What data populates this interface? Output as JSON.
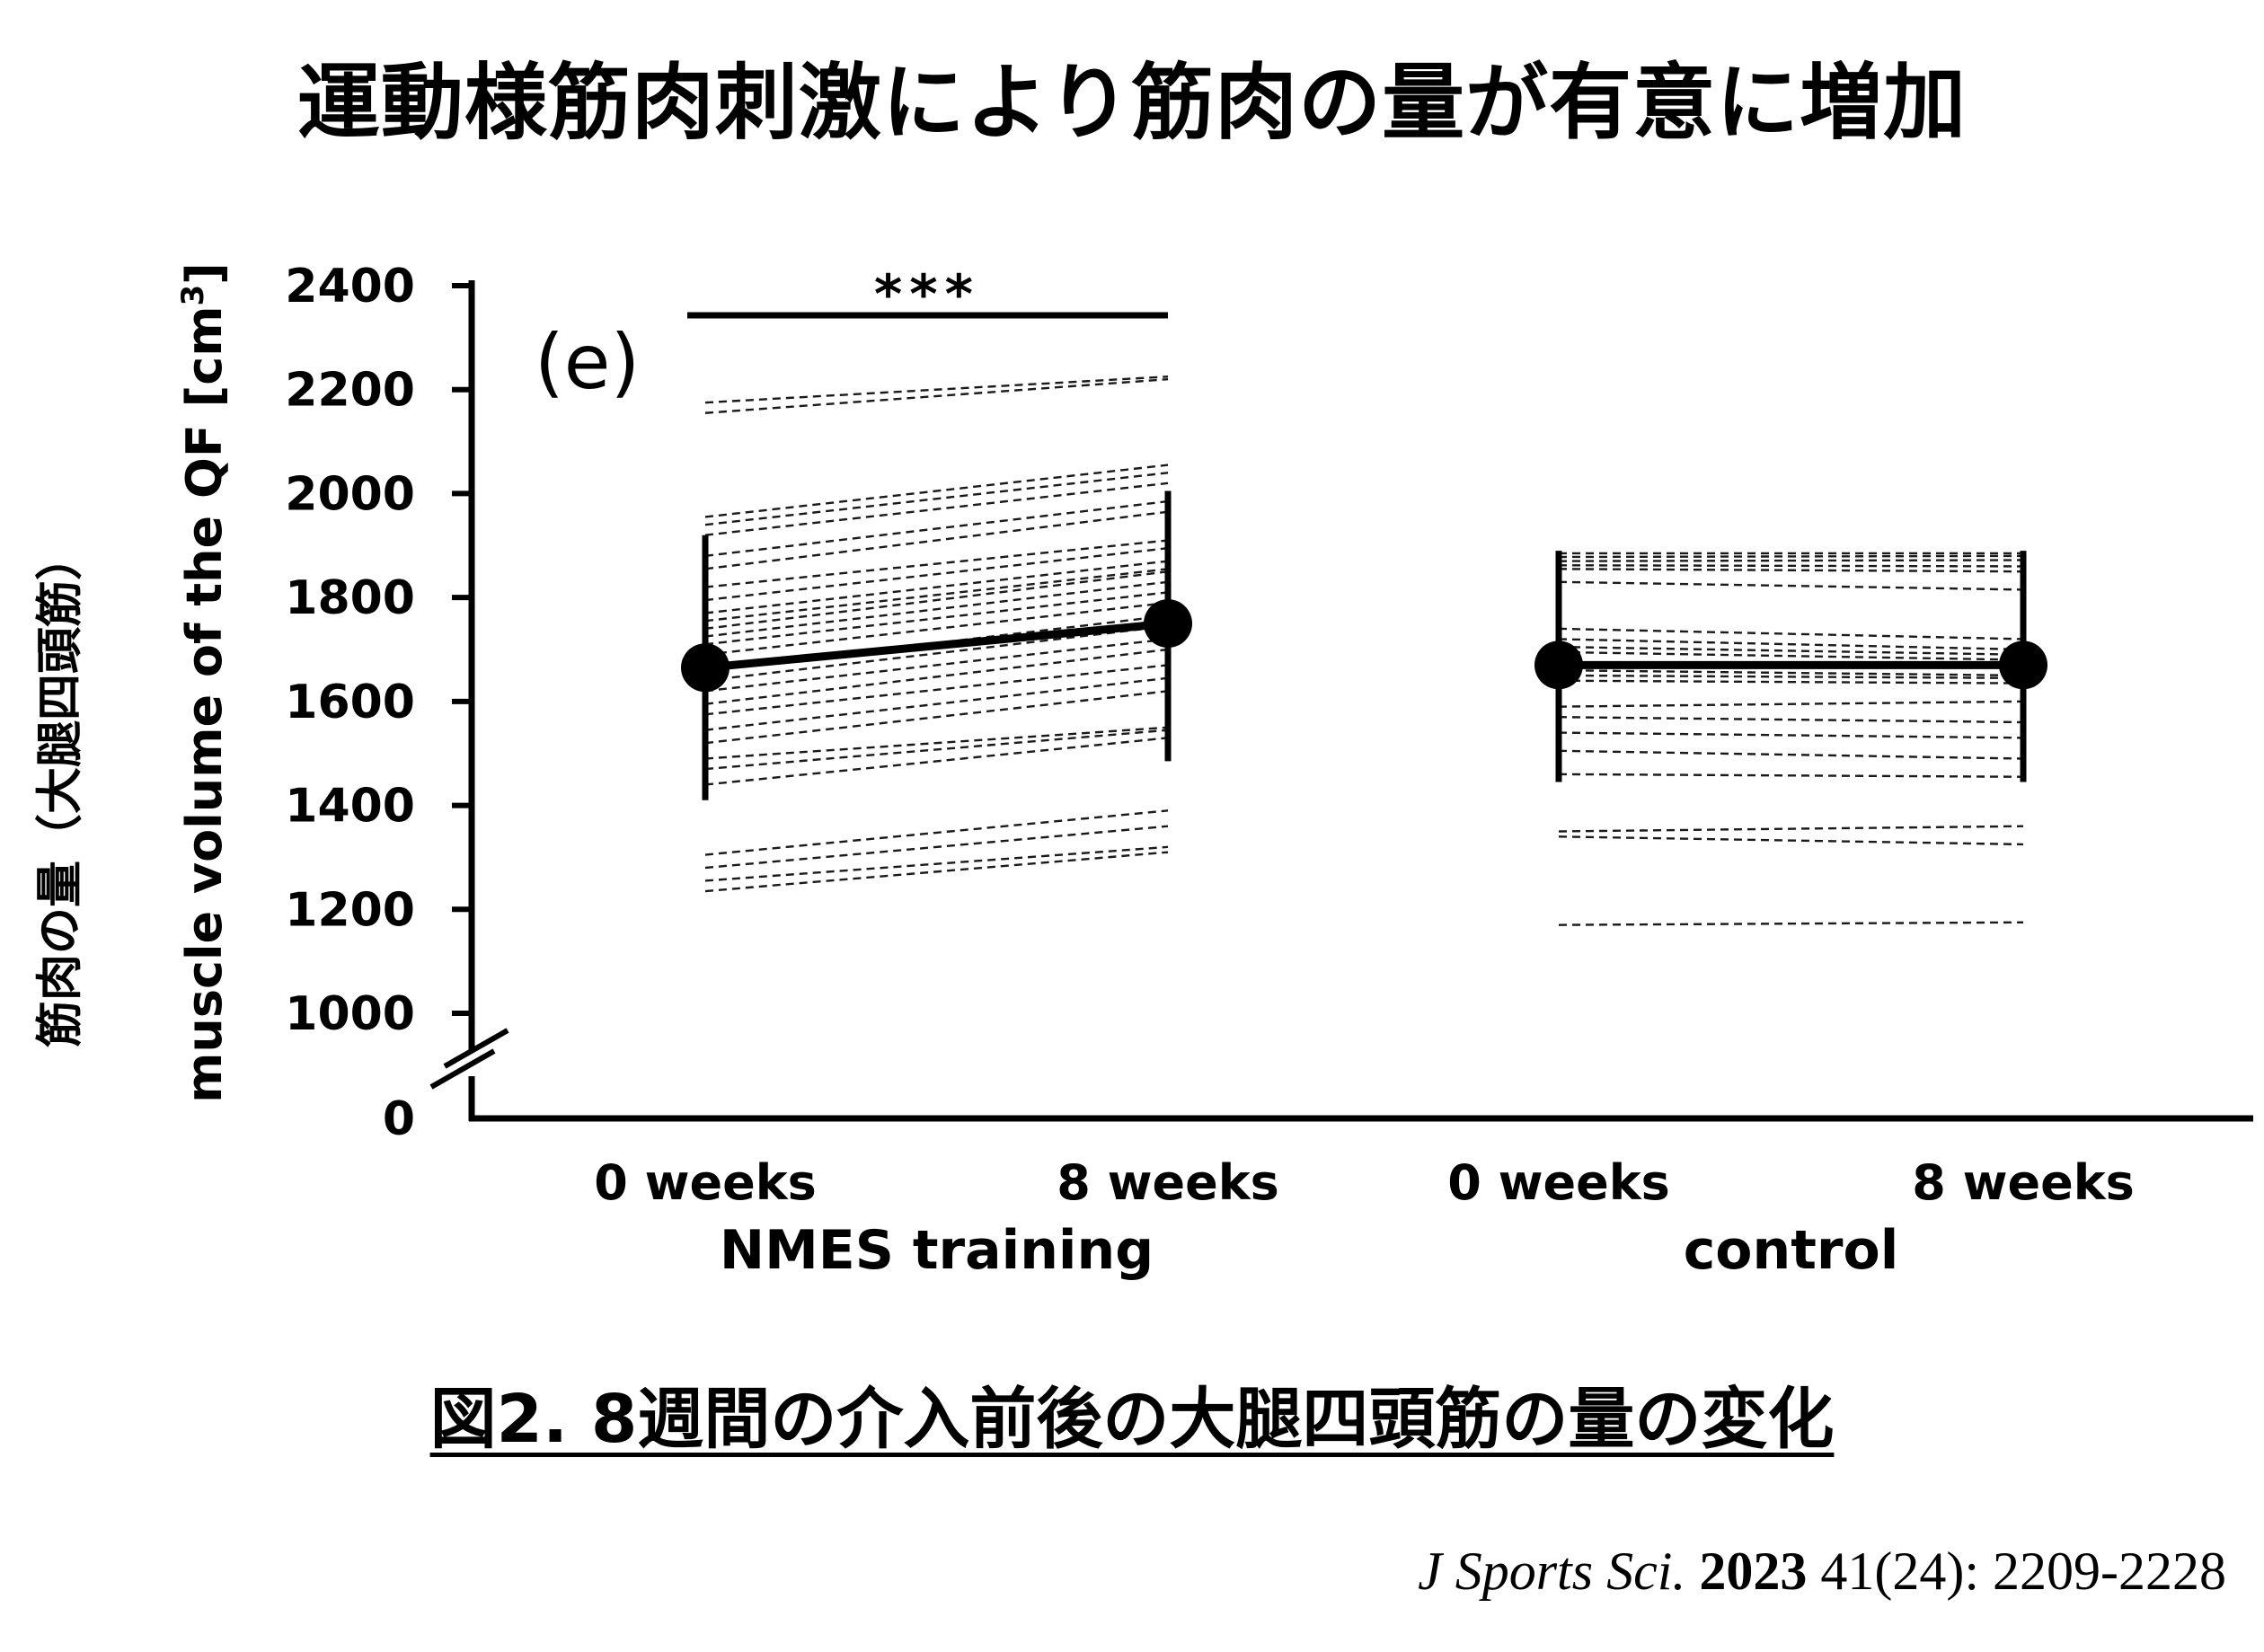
{
  "title": "運動様筋肉刺激により筋肉の量が有意に増加",
  "jp_ylabel": "筋肉の量（大腿四頭筋）",
  "caption": "図2. 8週間の介入前後の大腿四頭筋の量の変化",
  "citation": {
    "journal": "J Sports Sci.",
    "year": "2023",
    "rest": "41(24): 2209-2228"
  },
  "colors": {
    "ink": "#000000",
    "dashed": "#1a1a1a",
    "background": "#ffffff"
  },
  "chart_data": {
    "type": "line",
    "panel_label": "(e)",
    "ylabel": "muscle volume of the QF [cm",
    "ylabel_superscript": "3",
    "ylabel_close": "]",
    "yticks": [
      0,
      1000,
      1200,
      1400,
      1600,
      1800,
      2000,
      2200,
      2400
    ],
    "ylim": [
      1000,
      2400
    ],
    "axis_break": true,
    "significance": "***",
    "groups": [
      {
        "name": "NMES training",
        "categories": [
          "0 weeks",
          "8 weeks"
        ],
        "mean": [
          1665,
          1750
        ],
        "error_low": [
          1410,
          1485
        ],
        "error_high": [
          1920,
          2005
        ],
        "individuals": [
          [
            2175,
            2225
          ],
          [
            2155,
            2220
          ],
          [
            1955,
            2055
          ],
          [
            1940,
            2040
          ],
          [
            1920,
            2020
          ],
          [
            1880,
            1985
          ],
          [
            1855,
            1965
          ],
          [
            1820,
            1910
          ],
          [
            1795,
            1895
          ],
          [
            1770,
            1870
          ],
          [
            1755,
            1855
          ],
          [
            1740,
            1850
          ],
          [
            1725,
            1830
          ],
          [
            1710,
            1810
          ],
          [
            1690,
            1790
          ],
          [
            1660,
            1765
          ],
          [
            1640,
            1745
          ],
          [
            1620,
            1720
          ],
          [
            1595,
            1700
          ],
          [
            1575,
            1670
          ],
          [
            1545,
            1645
          ],
          [
            1520,
            1620
          ],
          [
            1490,
            1550
          ],
          [
            1470,
            1545
          ],
          [
            1440,
            1530
          ],
          [
            1305,
            1390
          ],
          [
            1280,
            1360
          ],
          [
            1255,
            1320
          ],
          [
            1235,
            1310
          ]
        ]
      },
      {
        "name": "control",
        "categories": [
          "0 weeks",
          "8 weeks"
        ],
        "mean": [
          1670,
          1670
        ],
        "error_low": [
          1445,
          1445
        ],
        "error_high": [
          1890,
          1890
        ],
        "individuals": [
          [
            1885,
            1885
          ],
          [
            1878,
            1880
          ],
          [
            1870,
            1872
          ],
          [
            1862,
            1860
          ],
          [
            1855,
            1850
          ],
          [
            1830,
            1815
          ],
          [
            1740,
            1720
          ],
          [
            1720,
            1700
          ],
          [
            1705,
            1690
          ],
          [
            1695,
            1680
          ],
          [
            1660,
            1650
          ],
          [
            1650,
            1645
          ],
          [
            1640,
            1635
          ],
          [
            1590,
            1600
          ],
          [
            1570,
            1560
          ],
          [
            1540,
            1530
          ],
          [
            1505,
            1490
          ],
          [
            1460,
            1455
          ],
          [
            1350,
            1360
          ],
          [
            1340,
            1325
          ],
          [
            1170,
            1175
          ]
        ]
      }
    ]
  }
}
